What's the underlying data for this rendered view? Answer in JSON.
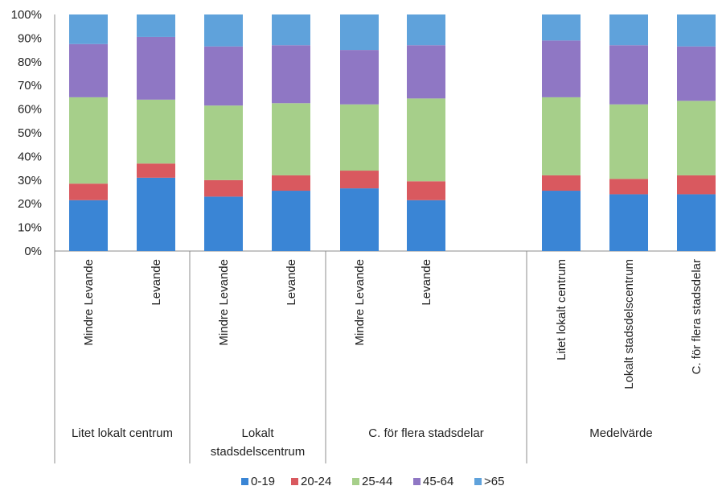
{
  "chart_data": {
    "type": "bar",
    "stacked": true,
    "percent": true,
    "ylim": [
      0,
      100
    ],
    "yticks": [
      "0%",
      "10%",
      "20%",
      "30%",
      "40%",
      "50%",
      "60%",
      "70%",
      "80%",
      "90%",
      "100%"
    ],
    "grid": false,
    "legend_position": "bottom",
    "categories": [
      "Mindre Levande",
      "Levande",
      "Mindre Levande",
      "Levande",
      "Mindre Levande",
      "Levande",
      "Litet lokalt centrum",
      "Lokalt stadsdelscentrum",
      "C. för flera stadsdelar"
    ],
    "groups": [
      {
        "label": "Litet lokalt centrum",
        "lines": [
          "Litet lokalt centrum"
        ],
        "members": [
          0,
          1
        ]
      },
      {
        "label": "Lokalt stadsdelscentrum",
        "lines": [
          "Lokalt",
          "stadsdelscentrum"
        ],
        "members": [
          2,
          3
        ]
      },
      {
        "label": "C. för flera stadsdelar",
        "lines": [
          "C. för flera stadsdelar"
        ],
        "members": [
          4,
          5
        ]
      },
      {
        "label": "Medelvärde",
        "lines": [
          "Medelvärde"
        ],
        "members": [
          6,
          7,
          8
        ]
      }
    ],
    "series": [
      {
        "name": "0-19",
        "color": "#3a85d5",
        "values": [
          21.5,
          31,
          23,
          25.5,
          26.5,
          21.5,
          25.5,
          24,
          24
        ]
      },
      {
        "name": "20-24",
        "color": "#d9595f",
        "values": [
          7,
          6,
          7,
          6.5,
          7.5,
          8,
          6.5,
          6.5,
          8
        ]
      },
      {
        "name": "25-44",
        "color": "#a6cf8a",
        "values": [
          36.5,
          27,
          31.5,
          30.5,
          28,
          35,
          33,
          31.5,
          31.5
        ]
      },
      {
        "name": "45-64",
        "color": "#8f77c4",
        "values": [
          22.5,
          26.5,
          25,
          24.5,
          23,
          22.5,
          24,
          25,
          23
        ]
      },
      {
        "name": ">65",
        "color": "#5fa2db",
        "values": [
          12.5,
          9.5,
          13.5,
          13,
          15,
          13,
          11,
          13,
          13.5
        ]
      }
    ]
  }
}
